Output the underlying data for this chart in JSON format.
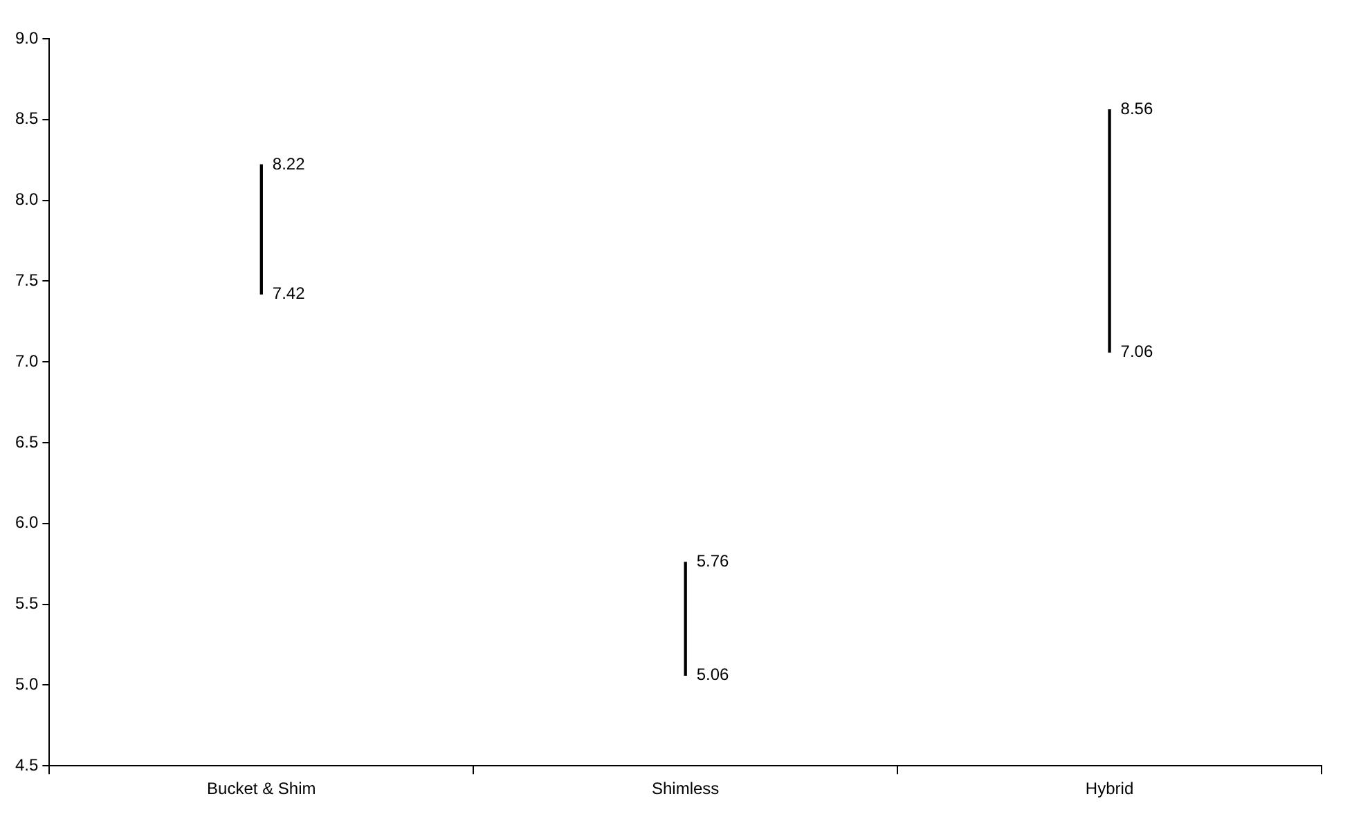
{
  "chart_data": {
    "type": "bar",
    "categories": [
      "Bucket & Shim",
      "Shimless",
      "Hybrid"
    ],
    "base": [
      7.42,
      5.06,
      7.06
    ],
    "values": [
      0.8,
      0.7,
      1.5
    ],
    "color": "#000000",
    "ylim": [
      4.5,
      9.0
    ],
    "yticks": [
      4.5,
      {
        "value": 5,
        "label": "5.0"
      },
      5.5,
      {
        "value": 6,
        "label": "6.0"
      },
      6.5,
      {
        "value": 7,
        "label": "7.0"
      },
      7.5,
      {
        "value": 8,
        "label": "8.0"
      },
      8.5,
      {
        "value": 9,
        "label": "9.0"
      }
    ],
    "grid": false,
    "legend": false,
    "annotations": [
      {
        "text": "8.22",
        "x": "Bucket & Shim",
        "y": 8.22
      },
      {
        "text": "7.42",
        "x": "Bucket & Shim",
        "y": 7.42
      },
      {
        "text": "5.76",
        "x": "Shimless",
        "y": 5.76
      },
      {
        "text": "5.06",
        "x": "Shimless",
        "y": 5.06
      },
      {
        "text": "8.56",
        "x": "Hybrid",
        "y": 8.56
      },
      {
        "text": "7.06",
        "x": "Hybrid",
        "y": 7.06
      }
    ]
  }
}
